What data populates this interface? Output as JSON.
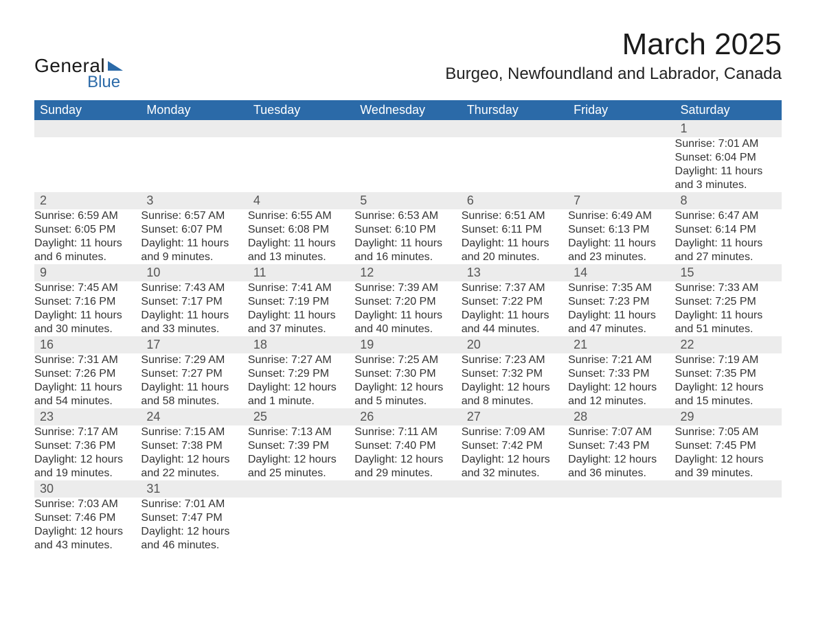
{
  "logo": {
    "main": "General",
    "sub": "Blue"
  },
  "title": "March 2025",
  "location": "Burgeo, Newfoundland and Labrador, Canada",
  "colors": {
    "header_bg": "#2b6aa8",
    "header_fg": "#ffffff",
    "daynum_bg": "#ececec",
    "row_divider": "#2b6aa8",
    "page_bg": "#ffffff",
    "text": "#333333",
    "logo_accent": "#2b6aa8"
  },
  "fonts": {
    "family": "Arial",
    "title_size_pt": 33,
    "location_size_pt": 18,
    "header_size_pt": 14,
    "body_size_pt": 12,
    "daynum_size_pt": 14
  },
  "weekdays": [
    "Sunday",
    "Monday",
    "Tuesday",
    "Wednesday",
    "Thursday",
    "Friday",
    "Saturday"
  ],
  "labels": {
    "sunrise": "Sunrise:",
    "sunset": "Sunset:",
    "daylight": "Daylight:"
  },
  "weeks": [
    [
      null,
      null,
      null,
      null,
      null,
      null,
      {
        "d": "1",
        "sr": "7:01 AM",
        "ss": "6:04 PM",
        "dl1": "11 hours",
        "dl2": "and 3 minutes."
      }
    ],
    [
      {
        "d": "2",
        "sr": "6:59 AM",
        "ss": "6:05 PM",
        "dl1": "11 hours",
        "dl2": "and 6 minutes."
      },
      {
        "d": "3",
        "sr": "6:57 AM",
        "ss": "6:07 PM",
        "dl1": "11 hours",
        "dl2": "and 9 minutes."
      },
      {
        "d": "4",
        "sr": "6:55 AM",
        "ss": "6:08 PM",
        "dl1": "11 hours",
        "dl2": "and 13 minutes."
      },
      {
        "d": "5",
        "sr": "6:53 AM",
        "ss": "6:10 PM",
        "dl1": "11 hours",
        "dl2": "and 16 minutes."
      },
      {
        "d": "6",
        "sr": "6:51 AM",
        "ss": "6:11 PM",
        "dl1": "11 hours",
        "dl2": "and 20 minutes."
      },
      {
        "d": "7",
        "sr": "6:49 AM",
        "ss": "6:13 PM",
        "dl1": "11 hours",
        "dl2": "and 23 minutes."
      },
      {
        "d": "8",
        "sr": "6:47 AM",
        "ss": "6:14 PM",
        "dl1": "11 hours",
        "dl2": "and 27 minutes."
      }
    ],
    [
      {
        "d": "9",
        "sr": "7:45 AM",
        "ss": "7:16 PM",
        "dl1": "11 hours",
        "dl2": "and 30 minutes."
      },
      {
        "d": "10",
        "sr": "7:43 AM",
        "ss": "7:17 PM",
        "dl1": "11 hours",
        "dl2": "and 33 minutes."
      },
      {
        "d": "11",
        "sr": "7:41 AM",
        "ss": "7:19 PM",
        "dl1": "11 hours",
        "dl2": "and 37 minutes."
      },
      {
        "d": "12",
        "sr": "7:39 AM",
        "ss": "7:20 PM",
        "dl1": "11 hours",
        "dl2": "and 40 minutes."
      },
      {
        "d": "13",
        "sr": "7:37 AM",
        "ss": "7:22 PM",
        "dl1": "11 hours",
        "dl2": "and 44 minutes."
      },
      {
        "d": "14",
        "sr": "7:35 AM",
        "ss": "7:23 PM",
        "dl1": "11 hours",
        "dl2": "and 47 minutes."
      },
      {
        "d": "15",
        "sr": "7:33 AM",
        "ss": "7:25 PM",
        "dl1": "11 hours",
        "dl2": "and 51 minutes."
      }
    ],
    [
      {
        "d": "16",
        "sr": "7:31 AM",
        "ss": "7:26 PM",
        "dl1": "11 hours",
        "dl2": "and 54 minutes."
      },
      {
        "d": "17",
        "sr": "7:29 AM",
        "ss": "7:27 PM",
        "dl1": "11 hours",
        "dl2": "and 58 minutes."
      },
      {
        "d": "18",
        "sr": "7:27 AM",
        "ss": "7:29 PM",
        "dl1": "12 hours",
        "dl2": "and 1 minute."
      },
      {
        "d": "19",
        "sr": "7:25 AM",
        "ss": "7:30 PM",
        "dl1": "12 hours",
        "dl2": "and 5 minutes."
      },
      {
        "d": "20",
        "sr": "7:23 AM",
        "ss": "7:32 PM",
        "dl1": "12 hours",
        "dl2": "and 8 minutes."
      },
      {
        "d": "21",
        "sr": "7:21 AM",
        "ss": "7:33 PM",
        "dl1": "12 hours",
        "dl2": "and 12 minutes."
      },
      {
        "d": "22",
        "sr": "7:19 AM",
        "ss": "7:35 PM",
        "dl1": "12 hours",
        "dl2": "and 15 minutes."
      }
    ],
    [
      {
        "d": "23",
        "sr": "7:17 AM",
        "ss": "7:36 PM",
        "dl1": "12 hours",
        "dl2": "and 19 minutes."
      },
      {
        "d": "24",
        "sr": "7:15 AM",
        "ss": "7:38 PM",
        "dl1": "12 hours",
        "dl2": "and 22 minutes."
      },
      {
        "d": "25",
        "sr": "7:13 AM",
        "ss": "7:39 PM",
        "dl1": "12 hours",
        "dl2": "and 25 minutes."
      },
      {
        "d": "26",
        "sr": "7:11 AM",
        "ss": "7:40 PM",
        "dl1": "12 hours",
        "dl2": "and 29 minutes."
      },
      {
        "d": "27",
        "sr": "7:09 AM",
        "ss": "7:42 PM",
        "dl1": "12 hours",
        "dl2": "and 32 minutes."
      },
      {
        "d": "28",
        "sr": "7:07 AM",
        "ss": "7:43 PM",
        "dl1": "12 hours",
        "dl2": "and 36 minutes."
      },
      {
        "d": "29",
        "sr": "7:05 AM",
        "ss": "7:45 PM",
        "dl1": "12 hours",
        "dl2": "and 39 minutes."
      }
    ],
    [
      {
        "d": "30",
        "sr": "7:03 AM",
        "ss": "7:46 PM",
        "dl1": "12 hours",
        "dl2": "and 43 minutes."
      },
      {
        "d": "31",
        "sr": "7:01 AM",
        "ss": "7:47 PM",
        "dl1": "12 hours",
        "dl2": "and 46 minutes."
      },
      null,
      null,
      null,
      null,
      null
    ]
  ]
}
